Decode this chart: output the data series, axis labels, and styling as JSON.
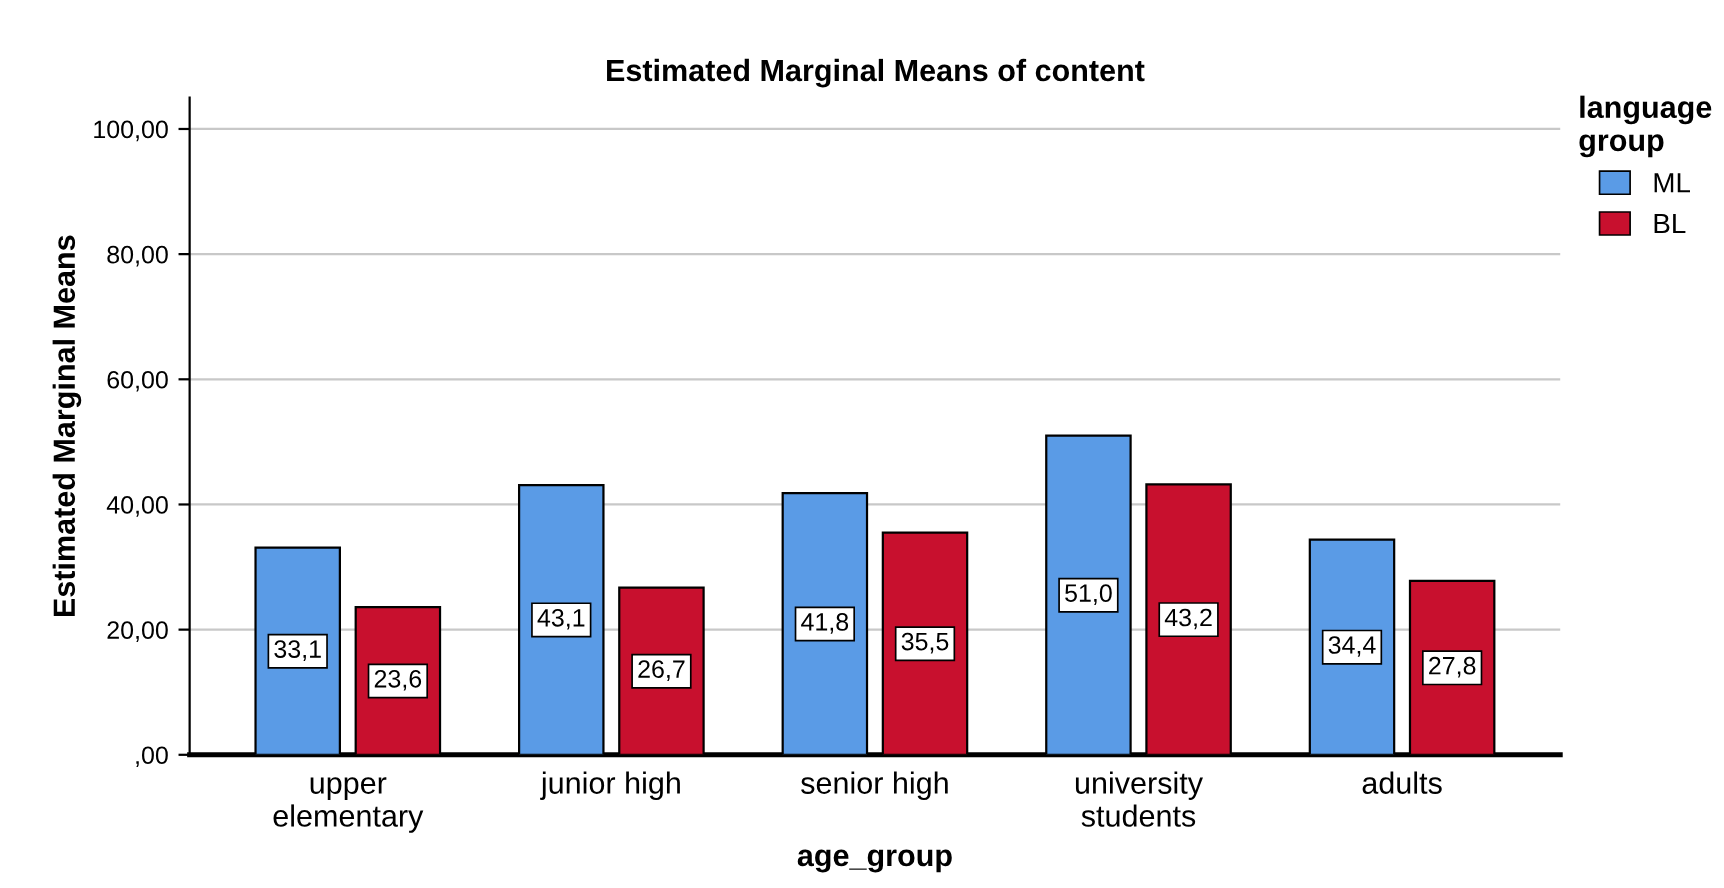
{
  "chart_data": {
    "type": "bar",
    "title": "Estimated Marginal Means of content",
    "xlabel": "age_group",
    "ylabel": "Estimated Marginal Means",
    "legend_title": "language\ngroup",
    "categories": [
      "upper\nelementary",
      "junior high",
      "senior high",
      "university\nstudents",
      "adults"
    ],
    "series": [
      {
        "name": "ML",
        "color": "#5a9be6",
        "values": [
          33.1,
          43.1,
          41.8,
          51.0,
          34.4
        ],
        "value_labels": [
          "33,1",
          "43,1",
          "41,8",
          "51,0",
          "34,4"
        ]
      },
      {
        "name": "BL",
        "color": "#c8102e",
        "values": [
          23.6,
          26.7,
          35.5,
          43.2,
          27.8
        ],
        "value_labels": [
          "23,6",
          "26,7",
          "35,5",
          "43,2",
          "27,8"
        ]
      }
    ],
    "ylim": [
      0,
      105
    ],
    "yticks": [
      {
        "value": 0,
        "label": ",00"
      },
      {
        "value": 20,
        "label": "20,00"
      },
      {
        "value": 40,
        "label": "40,00"
      },
      {
        "value": 60,
        "label": "60,00"
      },
      {
        "value": 80,
        "label": "80,00"
      },
      {
        "value": 100,
        "label": "100,00"
      }
    ],
    "grid": "y",
    "legend": "top right"
  }
}
